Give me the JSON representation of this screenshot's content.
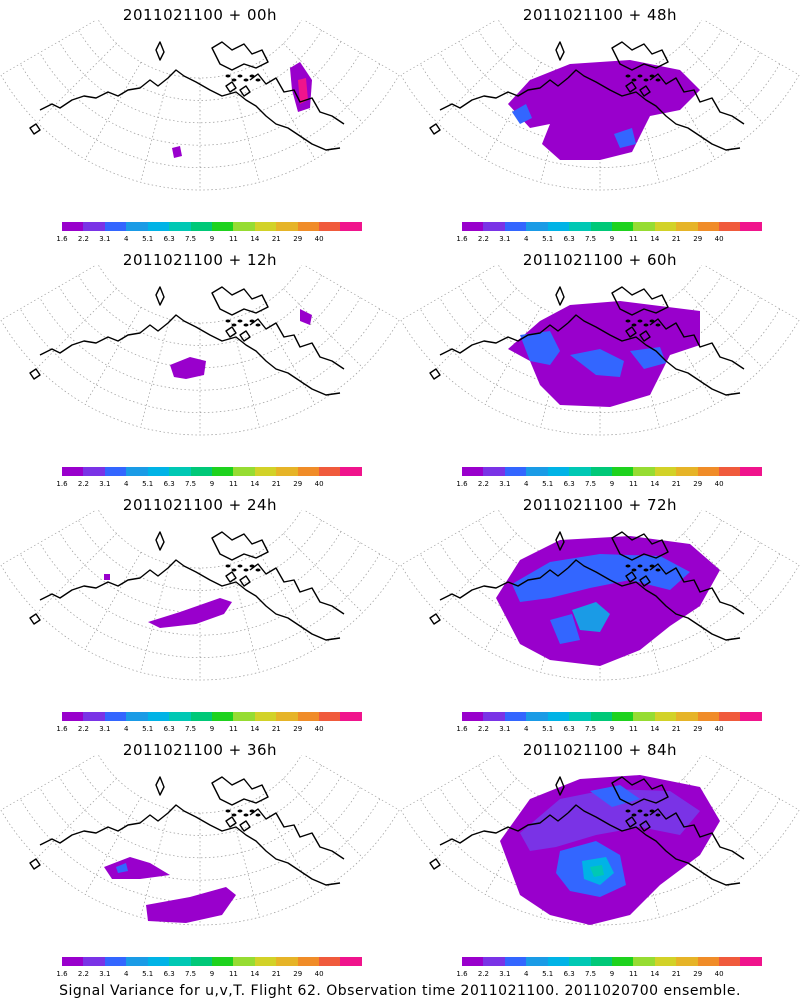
{
  "chart_data": {
    "type": "heatmap",
    "colorbar": {
      "ticks": [
        "1.6",
        "2.2",
        "3.1",
        "4",
        "5.1",
        "6.3",
        "7.5",
        "9",
        "11",
        "14",
        "21",
        "29",
        "40"
      ],
      "colors": [
        "#9900cc",
        "#7a33e6",
        "#3366ff",
        "#1a9be6",
        "#00b3e6",
        "#00c8b4",
        "#00c878",
        "#1ed21e",
        "#96dc32",
        "#d2d228",
        "#e6b428",
        "#f08c28",
        "#f05a3c",
        "#f0148c"
      ]
    },
    "panels": [
      {
        "title": "2011021100 + 00h",
        "forecast_hour": 0
      },
      {
        "title": "2011021100 + 48h",
        "forecast_hour": 48
      },
      {
        "title": "2011021100 + 12h",
        "forecast_hour": 12
      },
      {
        "title": "2011021100 + 60h",
        "forecast_hour": 60
      },
      {
        "title": "2011021100 + 24h",
        "forecast_hour": 24
      },
      {
        "title": "2011021100 + 72h",
        "forecast_hour": 72
      },
      {
        "title": "2011021100 + 36h",
        "forecast_hour": 36
      },
      {
        "title": "2011021100 + 84h",
        "forecast_hour": 84
      }
    ],
    "caption": "Signal Variance for u,v,T. Flight 62. Observation time 2011021100. 2011020700 ensemble."
  }
}
